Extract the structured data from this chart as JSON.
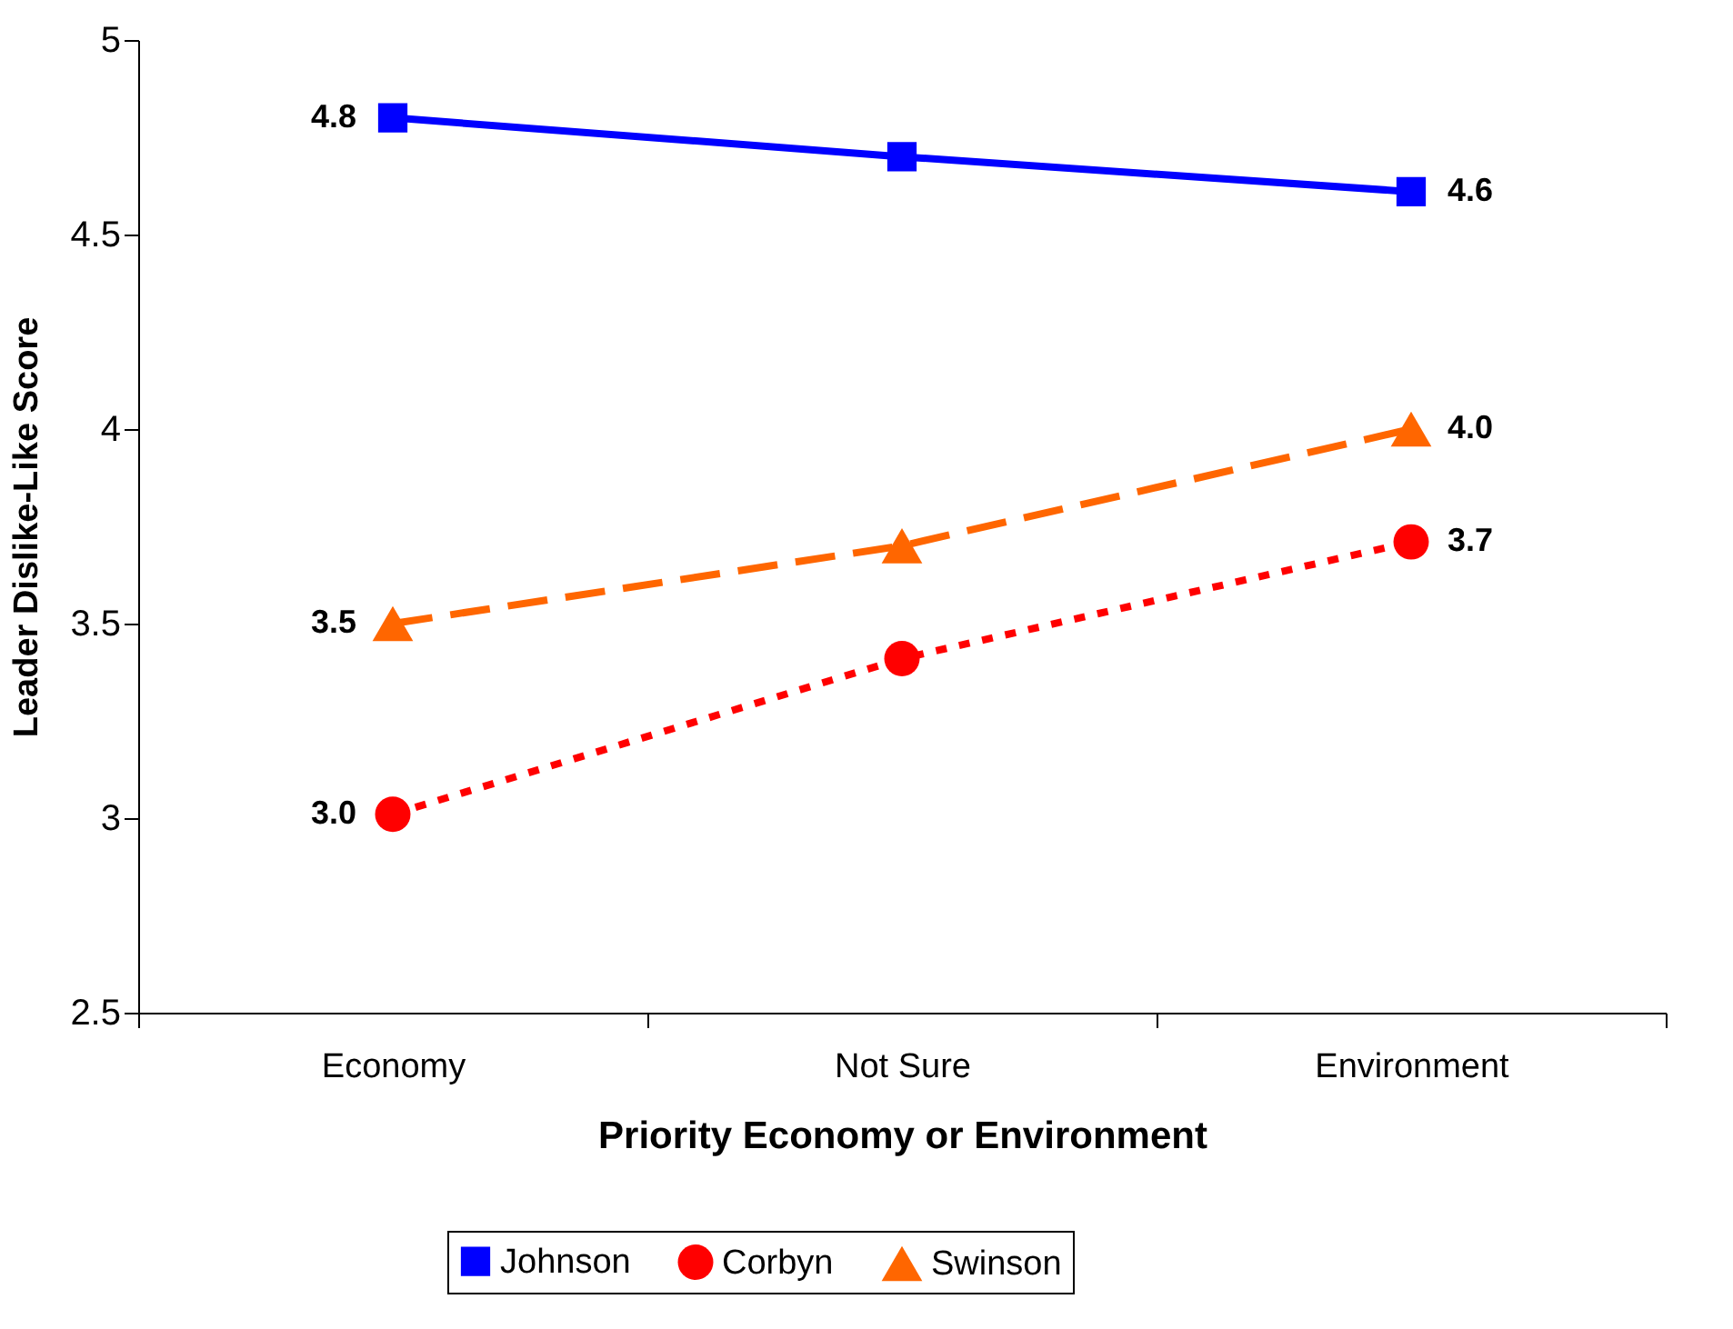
{
  "chart_data": {
    "type": "line",
    "xlabel": "Priority Economy or Environment",
    "ylabel": "Leader Dislike-Like Score",
    "categories": [
      "Economy",
      "Not Sure",
      "Environment"
    ],
    "series": [
      {
        "name": "Johnson",
        "color": "#0000ff",
        "marker": "square",
        "line_style": "solid",
        "values": [
          4.8,
          4.7,
          4.61
        ],
        "value_labels": [
          "4.8",
          null,
          "4.6"
        ]
      },
      {
        "name": "Corbyn",
        "color": "#ff0000",
        "marker": "circle",
        "line_style": "dotted",
        "values": [
          3.01,
          3.41,
          3.71
        ],
        "value_labels": [
          "3.0",
          null,
          "3.7"
        ]
      },
      {
        "name": "Swinson",
        "color": "#ff6600",
        "marker": "triangle",
        "line_style": "dashed",
        "values": [
          3.5,
          3.7,
          4.0
        ],
        "value_labels": [
          "3.5",
          null,
          "4.0"
        ]
      }
    ],
    "ylim": [
      2.5,
      5
    ],
    "yticks": [
      2.5,
      3,
      3.5,
      4,
      4.5,
      5
    ],
    "grid": false,
    "legend": "bottom"
  }
}
